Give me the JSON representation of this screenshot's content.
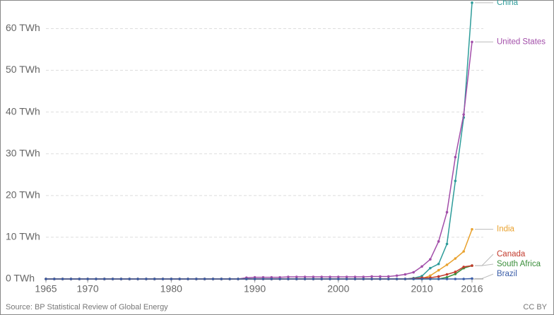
{
  "chart_data": {
    "type": "line",
    "source": "Source: BP Statistical Review of Global Energy",
    "license": "CC BY",
    "x": [
      1965,
      1966,
      1967,
      1968,
      1969,
      1970,
      1971,
      1972,
      1973,
      1974,
      1975,
      1976,
      1977,
      1978,
      1979,
      1980,
      1981,
      1982,
      1983,
      1984,
      1985,
      1986,
      1987,
      1988,
      1989,
      1990,
      1991,
      1992,
      1993,
      1994,
      1995,
      1996,
      1997,
      1998,
      1999,
      2000,
      2001,
      2002,
      2003,
      2004,
      2005,
      2006,
      2007,
      2008,
      2009,
      2010,
      2011,
      2012,
      2013,
      2014,
      2015,
      2016
    ],
    "xlim": [
      1965,
      2016
    ],
    "xticks": [
      1965,
      1970,
      1980,
      1990,
      2000,
      2010,
      2016
    ],
    "ylim": [
      0,
      66
    ],
    "yticks": [
      {
        "value": 0,
        "label": "0 TWh"
      },
      {
        "value": 10,
        "label": "10 TWh"
      },
      {
        "value": 20,
        "label": "20 TWh"
      },
      {
        "value": 30,
        "label": "30 TWh"
      },
      {
        "value": 40,
        "label": "40 TWh"
      },
      {
        "value": 50,
        "label": "50 TWh"
      },
      {
        "value": 60,
        "label": "60 TWh"
      }
    ],
    "grid": true,
    "series": [
      {
        "name": "China",
        "color": "#2e9c9a",
        "values": [
          0,
          0,
          0,
          0,
          0,
          0,
          0,
          0,
          0,
          0,
          0,
          0,
          0,
          0,
          0,
          0,
          0,
          0,
          0,
          0,
          0,
          0,
          0,
          0,
          0,
          0,
          0,
          0,
          0,
          0,
          0,
          0,
          0,
          0,
          0,
          0,
          0,
          0,
          0,
          0,
          0,
          0,
          0,
          0,
          0.2,
          0.7,
          2.6,
          3.6,
          8.4,
          23.5,
          38.7,
          66.2
        ]
      },
      {
        "name": "United States",
        "color": "#a24ea9",
        "values": [
          0,
          0,
          0,
          0,
          0,
          0,
          0,
          0,
          0,
          0,
          0,
          0,
          0,
          0,
          0,
          0,
          0,
          0,
          0,
          0,
          0,
          0,
          0,
          0,
          0.3,
          0.4,
          0.4,
          0.4,
          0.4,
          0.5,
          0.5,
          0.5,
          0.5,
          0.5,
          0.5,
          0.5,
          0.5,
          0.5,
          0.5,
          0.6,
          0.6,
          0.6,
          0.8,
          1.1,
          1.6,
          3.0,
          4.7,
          9.0,
          16.0,
          29.2,
          39.4,
          56.8
        ]
      },
      {
        "name": "India",
        "color": "#e9a22f",
        "values": [
          0,
          0,
          0,
          0,
          0,
          0,
          0,
          0,
          0,
          0,
          0,
          0,
          0,
          0,
          0,
          0,
          0,
          0,
          0,
          0,
          0,
          0,
          0,
          0,
          0,
          0,
          0,
          0,
          0,
          0,
          0,
          0,
          0,
          0,
          0,
          0,
          0,
          0,
          0,
          0,
          0,
          0,
          0,
          0,
          0,
          0.1,
          0.8,
          2.1,
          3.4,
          4.9,
          6.6,
          11.9
        ]
      },
      {
        "name": "South Africa",
        "color": "#3a8e3a",
        "values": [
          0,
          0,
          0,
          0,
          0,
          0,
          0,
          0,
          0,
          0,
          0,
          0,
          0,
          0,
          0,
          0,
          0,
          0,
          0,
          0,
          0,
          0,
          0,
          0,
          0,
          0,
          0,
          0,
          0,
          0,
          0,
          0,
          0,
          0,
          0,
          0,
          0,
          0,
          0,
          0,
          0,
          0,
          0,
          0,
          0,
          0,
          0,
          0,
          0.4,
          1.2,
          2.6,
          3.2
        ]
      },
      {
        "name": "Canada",
        "color": "#c33b2d",
        "values": [
          0,
          0,
          0,
          0,
          0,
          0,
          0,
          0,
          0,
          0,
          0,
          0,
          0,
          0,
          0,
          0,
          0,
          0,
          0,
          0,
          0,
          0,
          0,
          0,
          0,
          0,
          0,
          0,
          0,
          0,
          0,
          0,
          0,
          0,
          0,
          0,
          0,
          0,
          0,
          0,
          0,
          0,
          0,
          0,
          0.1,
          0.3,
          0.3,
          0.6,
          1.1,
          1.7,
          2.9,
          3.2
        ]
      },
      {
        "name": "Brazil",
        "color": "#3b5ea8",
        "values": [
          0,
          0,
          0,
          0,
          0,
          0,
          0,
          0,
          0,
          0,
          0,
          0,
          0,
          0,
          0,
          0,
          0,
          0,
          0,
          0,
          0,
          0,
          0,
          0,
          0,
          0,
          0,
          0,
          0,
          0,
          0,
          0,
          0,
          0,
          0,
          0,
          0,
          0,
          0,
          0,
          0,
          0,
          0,
          0,
          0,
          0,
          0,
          0,
          0,
          0,
          0,
          0.1
        ]
      }
    ]
  }
}
